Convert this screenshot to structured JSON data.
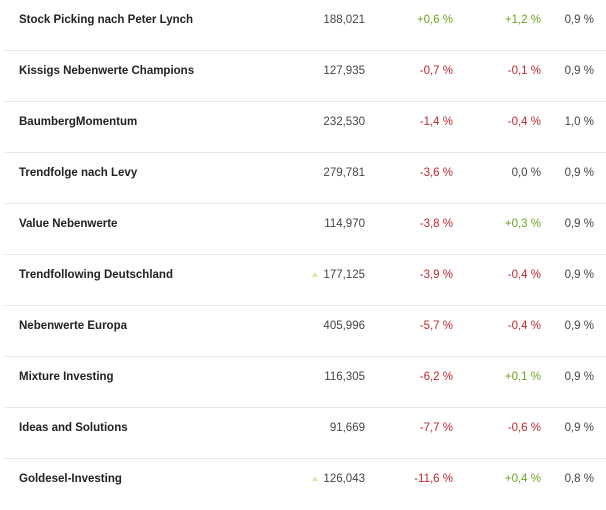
{
  "rows": [
    {
      "name": "Stock Picking nach Peter Lynch",
      "value": "188,021",
      "perf1": "+0,6 %",
      "perf1_color": "#6aa51d",
      "perf2": "+1,2 %",
      "perf2_color": "#6aa51d",
      "fee": "0,9 %",
      "indicator": false
    },
    {
      "name": "Kissigs Nebenwerte Champions",
      "value": "127,935",
      "perf1": "-0,7 %",
      "perf1_color": "#c0282d",
      "perf2": "-0,1 %",
      "perf2_color": "#c0282d",
      "fee": "0,9 %",
      "indicator": false
    },
    {
      "name": "BaumbergMomentum",
      "value": "232,530",
      "perf1": "-1,4 %",
      "perf1_color": "#c0282d",
      "perf2": "-0,4 %",
      "perf2_color": "#c0282d",
      "fee": "1,0 %",
      "indicator": false
    },
    {
      "name": "Trendfolge nach Levy",
      "value": "279,781",
      "perf1": "-3,6 %",
      "perf1_color": "#c0282d",
      "perf2": "0,0 %",
      "perf2_color": "#444444",
      "fee": "0,9 %",
      "indicator": false
    },
    {
      "name": "Value Nebenwerte",
      "value": "114,970",
      "perf1": "-3,8 %",
      "perf1_color": "#c0282d",
      "perf2": "+0,3 %",
      "perf2_color": "#6aa51d",
      "fee": "0,9 %",
      "indicator": false
    },
    {
      "name": "Trendfollowing Deutschland",
      "value": "177,125",
      "perf1": "-3,9 %",
      "perf1_color": "#c0282d",
      "perf2": "-0,4 %",
      "perf2_color": "#c0282d",
      "fee": "0,9 %",
      "indicator": true
    },
    {
      "name": "Nebenwerte Europa",
      "value": "405,996",
      "perf1": "-5,7 %",
      "perf1_color": "#c0282d",
      "perf2": "-0,4 %",
      "perf2_color": "#c0282d",
      "fee": "0,9 %",
      "indicator": false
    },
    {
      "name": "Mixture Investing",
      "value": "116,305",
      "perf1": "-6,2 %",
      "perf1_color": "#c0282d",
      "perf2": "+0,1 %",
      "perf2_color": "#6aa51d",
      "fee": "0,9 %",
      "indicator": false
    },
    {
      "name": "Ideas and Solutions",
      "value": "91,669",
      "perf1": "-7,7 %",
      "perf1_color": "#c0282d",
      "perf2": "-0,6 %",
      "perf2_color": "#c0282d",
      "fee": "0,9 %",
      "indicator": false
    },
    {
      "name": "Goldesel-Investing",
      "value": "126,043",
      "perf1": "-11,6 %",
      "perf1_color": "#c0282d",
      "perf2": "+0,4 %",
      "perf2_color": "#6aa51d",
      "fee": "0,8 %",
      "indicator": true
    }
  ]
}
